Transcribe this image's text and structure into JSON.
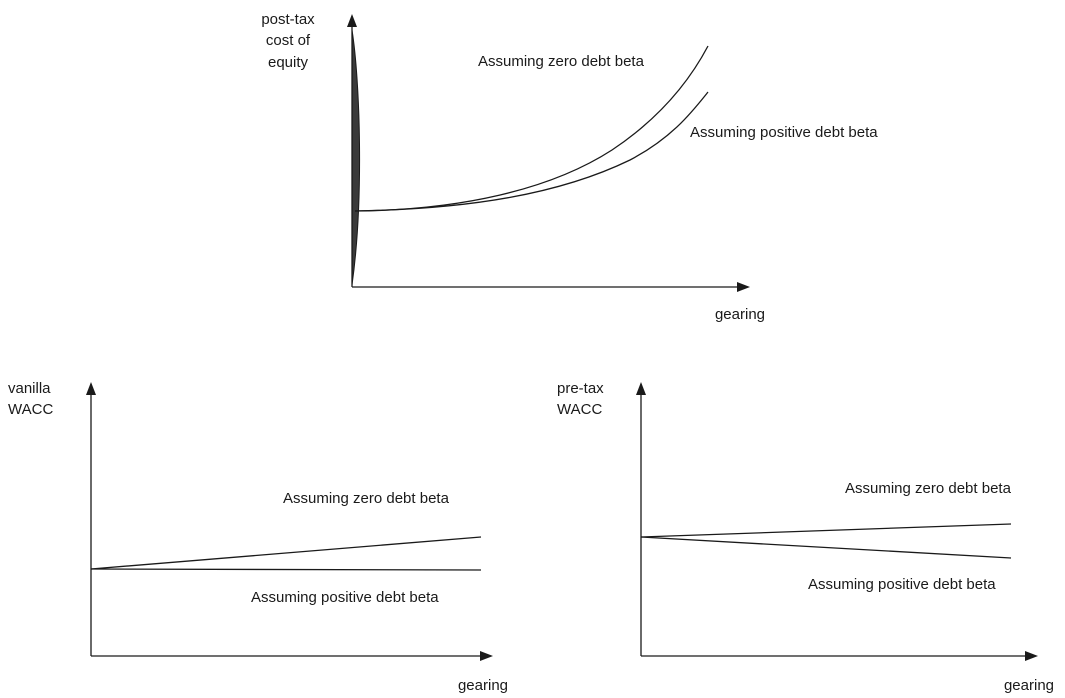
{
  "chart_data": [
    {
      "type": "line",
      "title": "",
      "ylabel_lines": [
        "post-tax",
        "cost of",
        "equity"
      ],
      "xlabel": "gearing",
      "series": [
        {
          "name": "Assuming zero debt beta",
          "shape": "convex-increasing, steeper"
        },
        {
          "name": "Assuming positive debt beta",
          "shape": "convex-increasing, flatter"
        }
      ]
    },
    {
      "type": "line",
      "title": "",
      "ylabel_lines": [
        "vanilla",
        "WACC"
      ],
      "xlabel": "gearing",
      "series": [
        {
          "name": "Assuming zero debt beta",
          "shape": "linear increasing"
        },
        {
          "name": "Assuming positive debt beta",
          "shape": "flat"
        }
      ]
    },
    {
      "type": "line",
      "title": "",
      "ylabel_lines": [
        "pre-tax",
        "WACC"
      ],
      "xlabel": "gearing",
      "series": [
        {
          "name": "Assuming zero debt beta",
          "shape": "slightly increasing"
        },
        {
          "name": "Assuming positive debt beta",
          "shape": "slightly decreasing"
        }
      ]
    }
  ]
}
